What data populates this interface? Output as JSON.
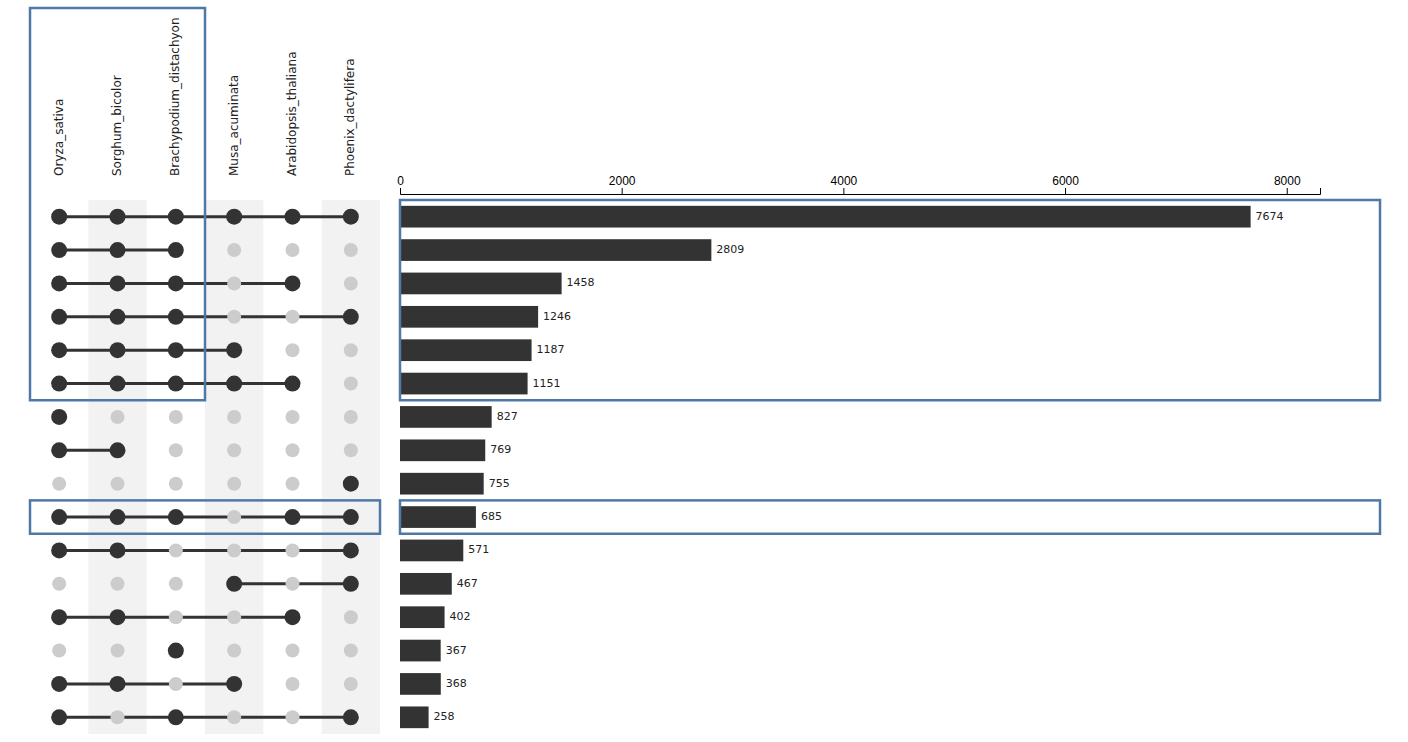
{
  "chart_data": {
    "type": "upset",
    "sets": [
      "Oryza_sativa",
      "Sorghum_bicolor",
      "Brachypodium_distachyon",
      "Musa_acuminata",
      "Arabidopsis_thaliana",
      "Phoenix_dactylifera"
    ],
    "values": [
      7674,
      2809,
      1458,
      1246,
      1187,
      1151,
      827,
      769,
      755,
      685,
      571,
      467,
      402,
      367,
      368,
      258
    ],
    "intersections": [
      [
        1,
        1,
        1,
        1,
        1,
        1
      ],
      [
        1,
        1,
        1,
        0,
        0,
        0
      ],
      [
        1,
        1,
        1,
        0,
        1,
        0
      ],
      [
        1,
        1,
        1,
        0,
        0,
        1
      ],
      [
        1,
        1,
        1,
        1,
        0,
        0
      ],
      [
        1,
        1,
        1,
        1,
        1,
        0
      ],
      [
        1,
        0,
        0,
        0,
        0,
        0
      ],
      [
        1,
        1,
        0,
        0,
        0,
        0
      ],
      [
        0,
        0,
        0,
        0,
        0,
        1
      ],
      [
        1,
        1,
        1,
        0,
        1,
        1
      ],
      [
        1,
        1,
        0,
        0,
        0,
        1
      ],
      [
        0,
        0,
        0,
        1,
        0,
        1
      ],
      [
        1,
        1,
        0,
        0,
        1,
        0
      ],
      [
        0,
        0,
        1,
        0,
        0,
        0
      ],
      [
        1,
        1,
        0,
        1,
        0,
        0
      ],
      [
        1,
        0,
        1,
        0,
        0,
        1
      ]
    ],
    "highlight_sets": [
      0,
      1,
      2
    ],
    "highlight_intersection": 9,
    "orientation": "horizontal",
    "color": "#333333",
    "xlim": [
      0,
      8300
    ],
    "xticks": [
      0,
      2000,
      4000,
      6000,
      8000
    ],
    "data_labels": true,
    "grid": false
  }
}
